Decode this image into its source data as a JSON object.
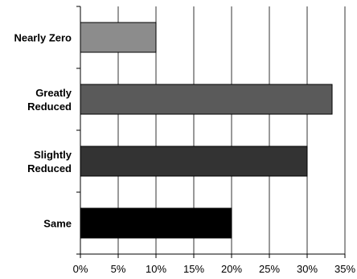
{
  "chart_data": {
    "type": "bar",
    "orientation": "horizontal",
    "title": "",
    "xlabel": "",
    "ylabel": "",
    "categories": [
      [
        "Nearly Zero"
      ],
      [
        "Greatly",
        "Reduced"
      ],
      [
        "Slightly",
        "Reduced"
      ],
      [
        "Same"
      ]
    ],
    "values": [
      10,
      33.3,
      30,
      20
    ],
    "bar_colors": [
      "#8c8c8c",
      "#5a5a5a",
      "#333333",
      "#000000"
    ],
    "xlim": [
      0,
      35
    ],
    "xticks": [
      0,
      5,
      10,
      15,
      20,
      25,
      30,
      35
    ],
    "xtick_labels": [
      "0%",
      "5%",
      "10%",
      "15%",
      "20%",
      "25%",
      "30%",
      "35%"
    ],
    "grid": "vertical",
    "legend": "none"
  }
}
